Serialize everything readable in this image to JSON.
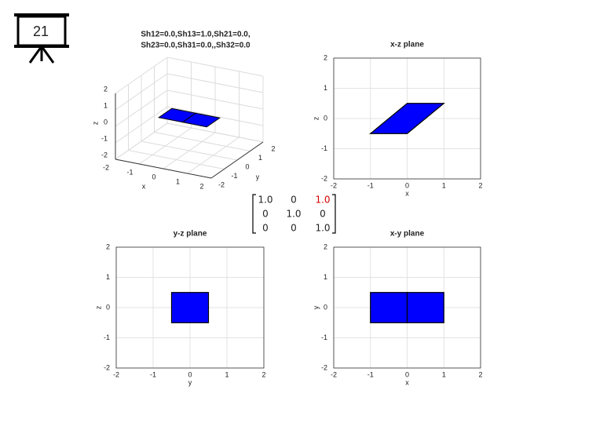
{
  "slide_number": "21",
  "matrix": {
    "rows": [
      [
        "1.0",
        "0",
        "1.0"
      ],
      [
        "0",
        "1.0",
        "0"
      ],
      [
        "0",
        "0",
        "1.0"
      ]
    ],
    "highlight": {
      "row": 0,
      "col": 2,
      "color": "#d40000"
    }
  },
  "chart_data": [
    {
      "type": "patch3d",
      "title": [
        "Sh12=0.0,Sh13=1.0,Sh21=0.0,",
        "Sh23=0.0,Sh31=0.0,,Sh32=0.0"
      ],
      "xlabel": "x",
      "ylabel": "y",
      "zlabel": "z",
      "xlim": [
        -2,
        2
      ],
      "ylim": [
        -2,
        2
      ],
      "zlim": [
        -2,
        2
      ],
      "xticks": [
        -2,
        -1,
        0,
        1,
        2
      ],
      "yticks": [
        -2,
        -1,
        0,
        1,
        2
      ],
      "zticks": [
        -2,
        -1,
        0,
        1,
        2
      ],
      "grid": true,
      "series": [
        {
          "color": "#0000ff",
          "x": [
            -1,
            0,
            0,
            -1
          ],
          "y": [
            -0.5,
            -0.5,
            0.5,
            0.5
          ],
          "z": [
            0,
            0,
            0,
            0
          ]
        },
        {
          "color": "#0000ff",
          "x": [
            0,
            1,
            1,
            0
          ],
          "y": [
            -0.5,
            -0.5,
            0.5,
            0.5
          ],
          "z": [
            0,
            0,
            0,
            0
          ]
        }
      ]
    },
    {
      "type": "polygon",
      "title": "x-z plane",
      "xlabel": "x",
      "ylabel": "z",
      "xlim": [
        -2,
        2
      ],
      "ylim": [
        -2,
        2
      ],
      "xticks": [
        -2,
        -1,
        0,
        1,
        2
      ],
      "yticks": [
        -2,
        -1,
        0,
        1,
        2
      ],
      "grid": true,
      "series": [
        {
          "color": "#0000ff",
          "x": [
            -1,
            0,
            1,
            0
          ],
          "y": [
            -0.5,
            -0.5,
            0.5,
            0.5
          ]
        }
      ]
    },
    {
      "type": "polygon",
      "title": "y-z plane",
      "xlabel": "y",
      "ylabel": "z",
      "xlim": [
        -2,
        2
      ],
      "ylim": [
        -2,
        2
      ],
      "xticks": [
        -2,
        -1,
        0,
        1,
        2
      ],
      "yticks": [
        -2,
        -1,
        0,
        1,
        2
      ],
      "grid": true,
      "series": [
        {
          "color": "#0000ff",
          "x": [
            -0.5,
            0.5,
            0.5,
            -0.5
          ],
          "y": [
            -0.5,
            -0.5,
            0.5,
            0.5
          ]
        }
      ]
    },
    {
      "type": "polygon",
      "title": "x-y plane",
      "xlabel": "x",
      "ylabel": "y",
      "xlim": [
        -2,
        2
      ],
      "ylim": [
        -2,
        2
      ],
      "xticks": [
        -2,
        -1,
        0,
        1,
        2
      ],
      "yticks": [
        -2,
        -1,
        0,
        1,
        2
      ],
      "grid": true,
      "series": [
        {
          "color": "#0000ff",
          "x": [
            -1,
            0,
            0,
            -1
          ],
          "y": [
            -0.5,
            -0.5,
            0.5,
            0.5
          ]
        },
        {
          "color": "#0000ff",
          "x": [
            0,
            1,
            1,
            0
          ],
          "y": [
            -0.5,
            -0.5,
            0.5,
            0.5
          ]
        }
      ]
    }
  ]
}
